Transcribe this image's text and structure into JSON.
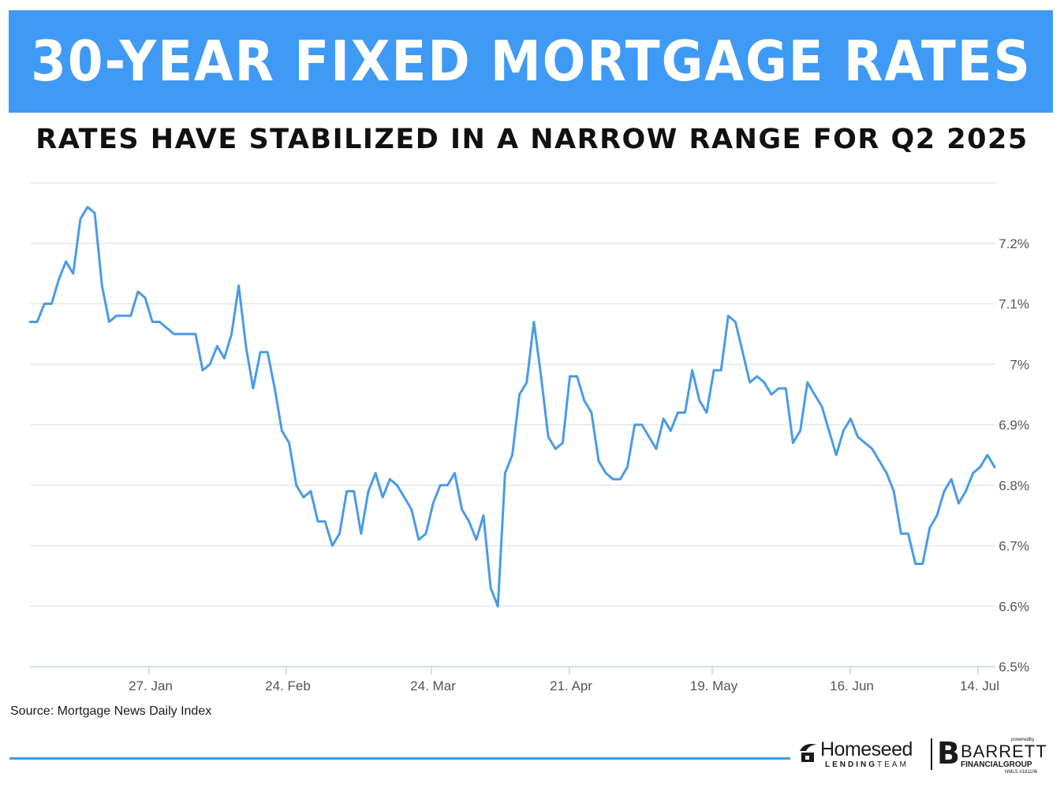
{
  "header": {
    "title": "30-YEAR FIXED MORTGAGE RATES",
    "subtitle": "RATES HAVE STABILIZED IN A NARROW RANGE FOR Q2 2025"
  },
  "colors": {
    "banner": "#3e9af4",
    "line": "#4a9be8",
    "grid": "#e3e7ee",
    "tick_text": "#555555"
  },
  "chart_data": {
    "type": "line",
    "title": "",
    "xlabel": "",
    "ylabel": "",
    "y_axis_side": "right",
    "ylim": [
      6.5,
      7.3
    ],
    "grid": true,
    "legend": "none",
    "y_ticks": [
      {
        "value": 6.5,
        "label": "6.5%"
      },
      {
        "value": 6.6,
        "label": "6.6%"
      },
      {
        "value": 6.7,
        "label": "6.7%"
      },
      {
        "value": 6.8,
        "label": "6.8%"
      },
      {
        "value": 6.9,
        "label": "6.9%"
      },
      {
        "value": 7.0,
        "label": "7%"
      },
      {
        "value": 7.1,
        "label": "7.1%"
      },
      {
        "value": 7.2,
        "label": "7.2%"
      }
    ],
    "x_ticks": [
      "27. Jan",
      "24. Feb",
      "24. Mar",
      "21. Apr",
      "19. May",
      "16. Jun",
      "14. Jul"
    ],
    "series": [
      {
        "values": [
          7.07,
          7.07,
          7.1,
          7.1,
          7.14,
          7.17,
          7.15,
          7.24,
          7.26,
          7.25,
          7.13,
          7.07,
          7.08,
          7.08,
          7.08,
          7.12,
          7.11,
          7.07,
          7.07,
          7.06,
          7.05,
          7.05,
          7.05,
          7.05,
          6.99,
          7.0,
          7.03,
          7.01,
          7.05,
          7.13,
          7.03,
          6.96,
          7.02,
          7.02,
          6.96,
          6.89,
          6.87,
          6.8,
          6.78,
          6.79,
          6.74,
          6.74,
          6.7,
          6.72,
          6.79,
          6.79,
          6.72,
          6.79,
          6.82,
          6.78,
          6.81,
          6.8,
          6.78,
          6.76,
          6.71,
          6.72,
          6.77,
          6.8,
          6.8,
          6.82,
          6.76,
          6.74,
          6.71,
          6.75,
          6.63,
          6.6,
          6.82,
          6.85,
          6.95,
          6.97,
          7.07,
          6.98,
          6.88,
          6.86,
          6.87,
          6.98,
          6.98,
          6.94,
          6.92,
          6.84,
          6.82,
          6.81,
          6.81,
          6.83,
          6.9,
          6.9,
          6.88,
          6.86,
          6.91,
          6.89,
          6.92,
          6.92,
          6.99,
          6.94,
          6.92,
          6.99,
          6.99,
          7.08,
          7.07,
          7.02,
          6.97,
          6.98,
          6.97,
          6.95,
          6.96,
          6.96,
          6.87,
          6.89,
          6.97,
          6.95,
          6.93,
          6.89,
          6.85,
          6.89,
          6.91,
          6.88,
          6.87,
          6.86,
          6.84,
          6.82,
          6.79,
          6.72,
          6.72,
          6.67,
          6.67,
          6.73,
          6.75,
          6.79,
          6.81,
          6.77,
          6.79,
          6.82,
          6.83,
          6.85,
          6.83
        ]
      }
    ]
  },
  "source": "Source: Mortgage News Daily Index",
  "logos": {
    "homeseed": "Homeseed",
    "homeseed_sub_bold": "LENDING",
    "homeseed_sub": "TEAM",
    "powered_by": "poweredby",
    "barrett": "BARRETT",
    "barrett_sub": "FINANCIALGROUP",
    "nmls": "NMLS #181106"
  }
}
